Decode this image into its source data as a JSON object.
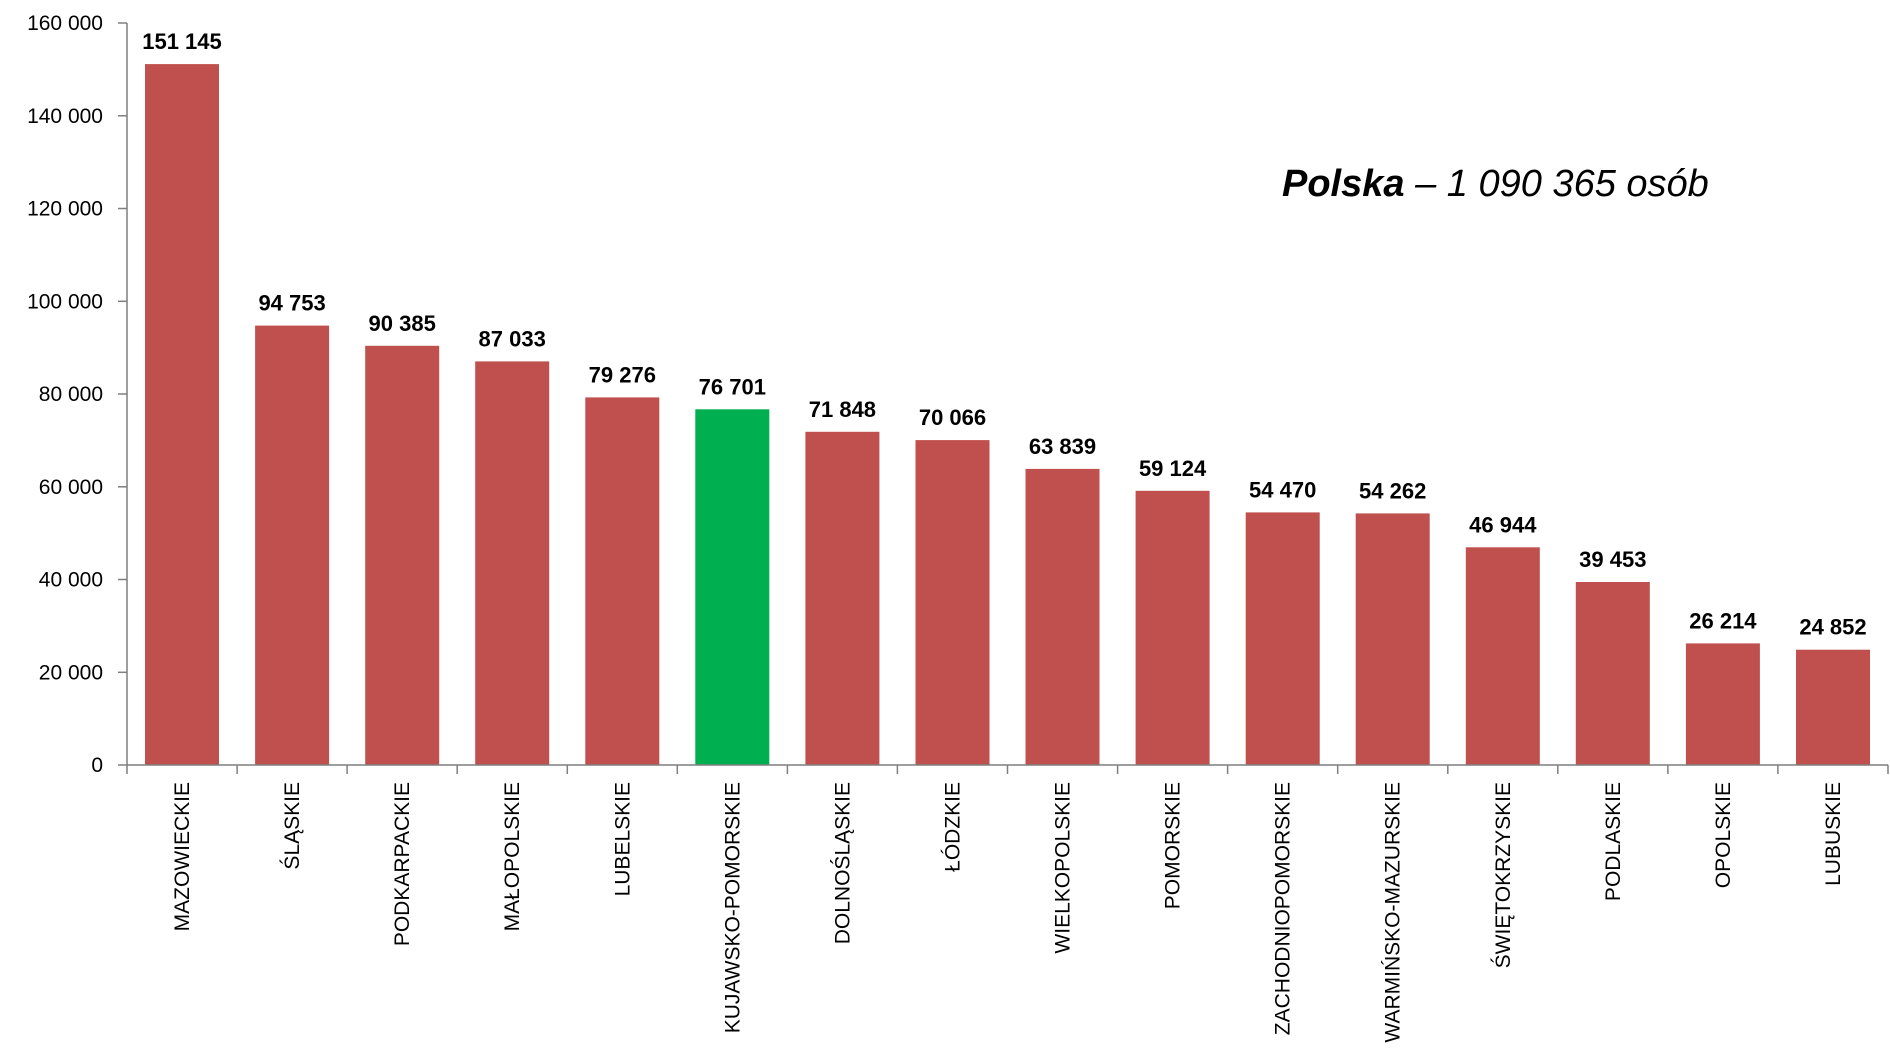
{
  "chart_data": {
    "type": "bar",
    "categories": [
      "MAZOWIECKIE",
      "ŚLĄSKIE",
      "PODKARPACKIE",
      "MAŁOPOLSKIE",
      "LUBELSKIE",
      "KUJAWSKO-POMORSKIE",
      "DOLNOŚLĄSKIE",
      "ŁÓDZKIE",
      "WIELKOPOLSKIE",
      "POMORSKIE",
      "ZACHODNIOPOMORSKIE",
      "WARMIŃSKO-MAZURSKIE",
      "ŚWIĘTOKRZYSKIE",
      "PODLASKIE",
      "OPOLSKIE",
      "LUBUSKIE"
    ],
    "values": [
      151145,
      94753,
      90385,
      87033,
      79276,
      76701,
      71848,
      70066,
      63839,
      59124,
      54470,
      54262,
      46944,
      39453,
      26214,
      24852
    ],
    "data_labels": [
      "151 145",
      "94 753",
      "90 385",
      "87 033",
      "79 276",
      "76 701",
      "71 848",
      "70 066",
      "63 839",
      "59 124",
      "54 470",
      "54 262",
      "46 944",
      "39 453",
      "26 214",
      "24 852"
    ],
    "highlight_category": "KUJAWSKO-POMORSKIE",
    "ylim": [
      0,
      160000
    ],
    "yticks": [
      0,
      20000,
      40000,
      60000,
      80000,
      100000,
      120000,
      140000,
      160000
    ],
    "ytick_labels": [
      "0",
      "20 000",
      "40 000",
      "60 000",
      "80 000",
      "100 000",
      "120 000",
      "140 000",
      "160 000"
    ],
    "grid": false,
    "legend": "none",
    "annotation": {
      "bold_part": "Polska",
      "rest": " – 1 090 365 osób"
    },
    "colors": {
      "bar": "#C0504D",
      "highlight": "#00B050",
      "axis": "#7F7F7F"
    }
  }
}
